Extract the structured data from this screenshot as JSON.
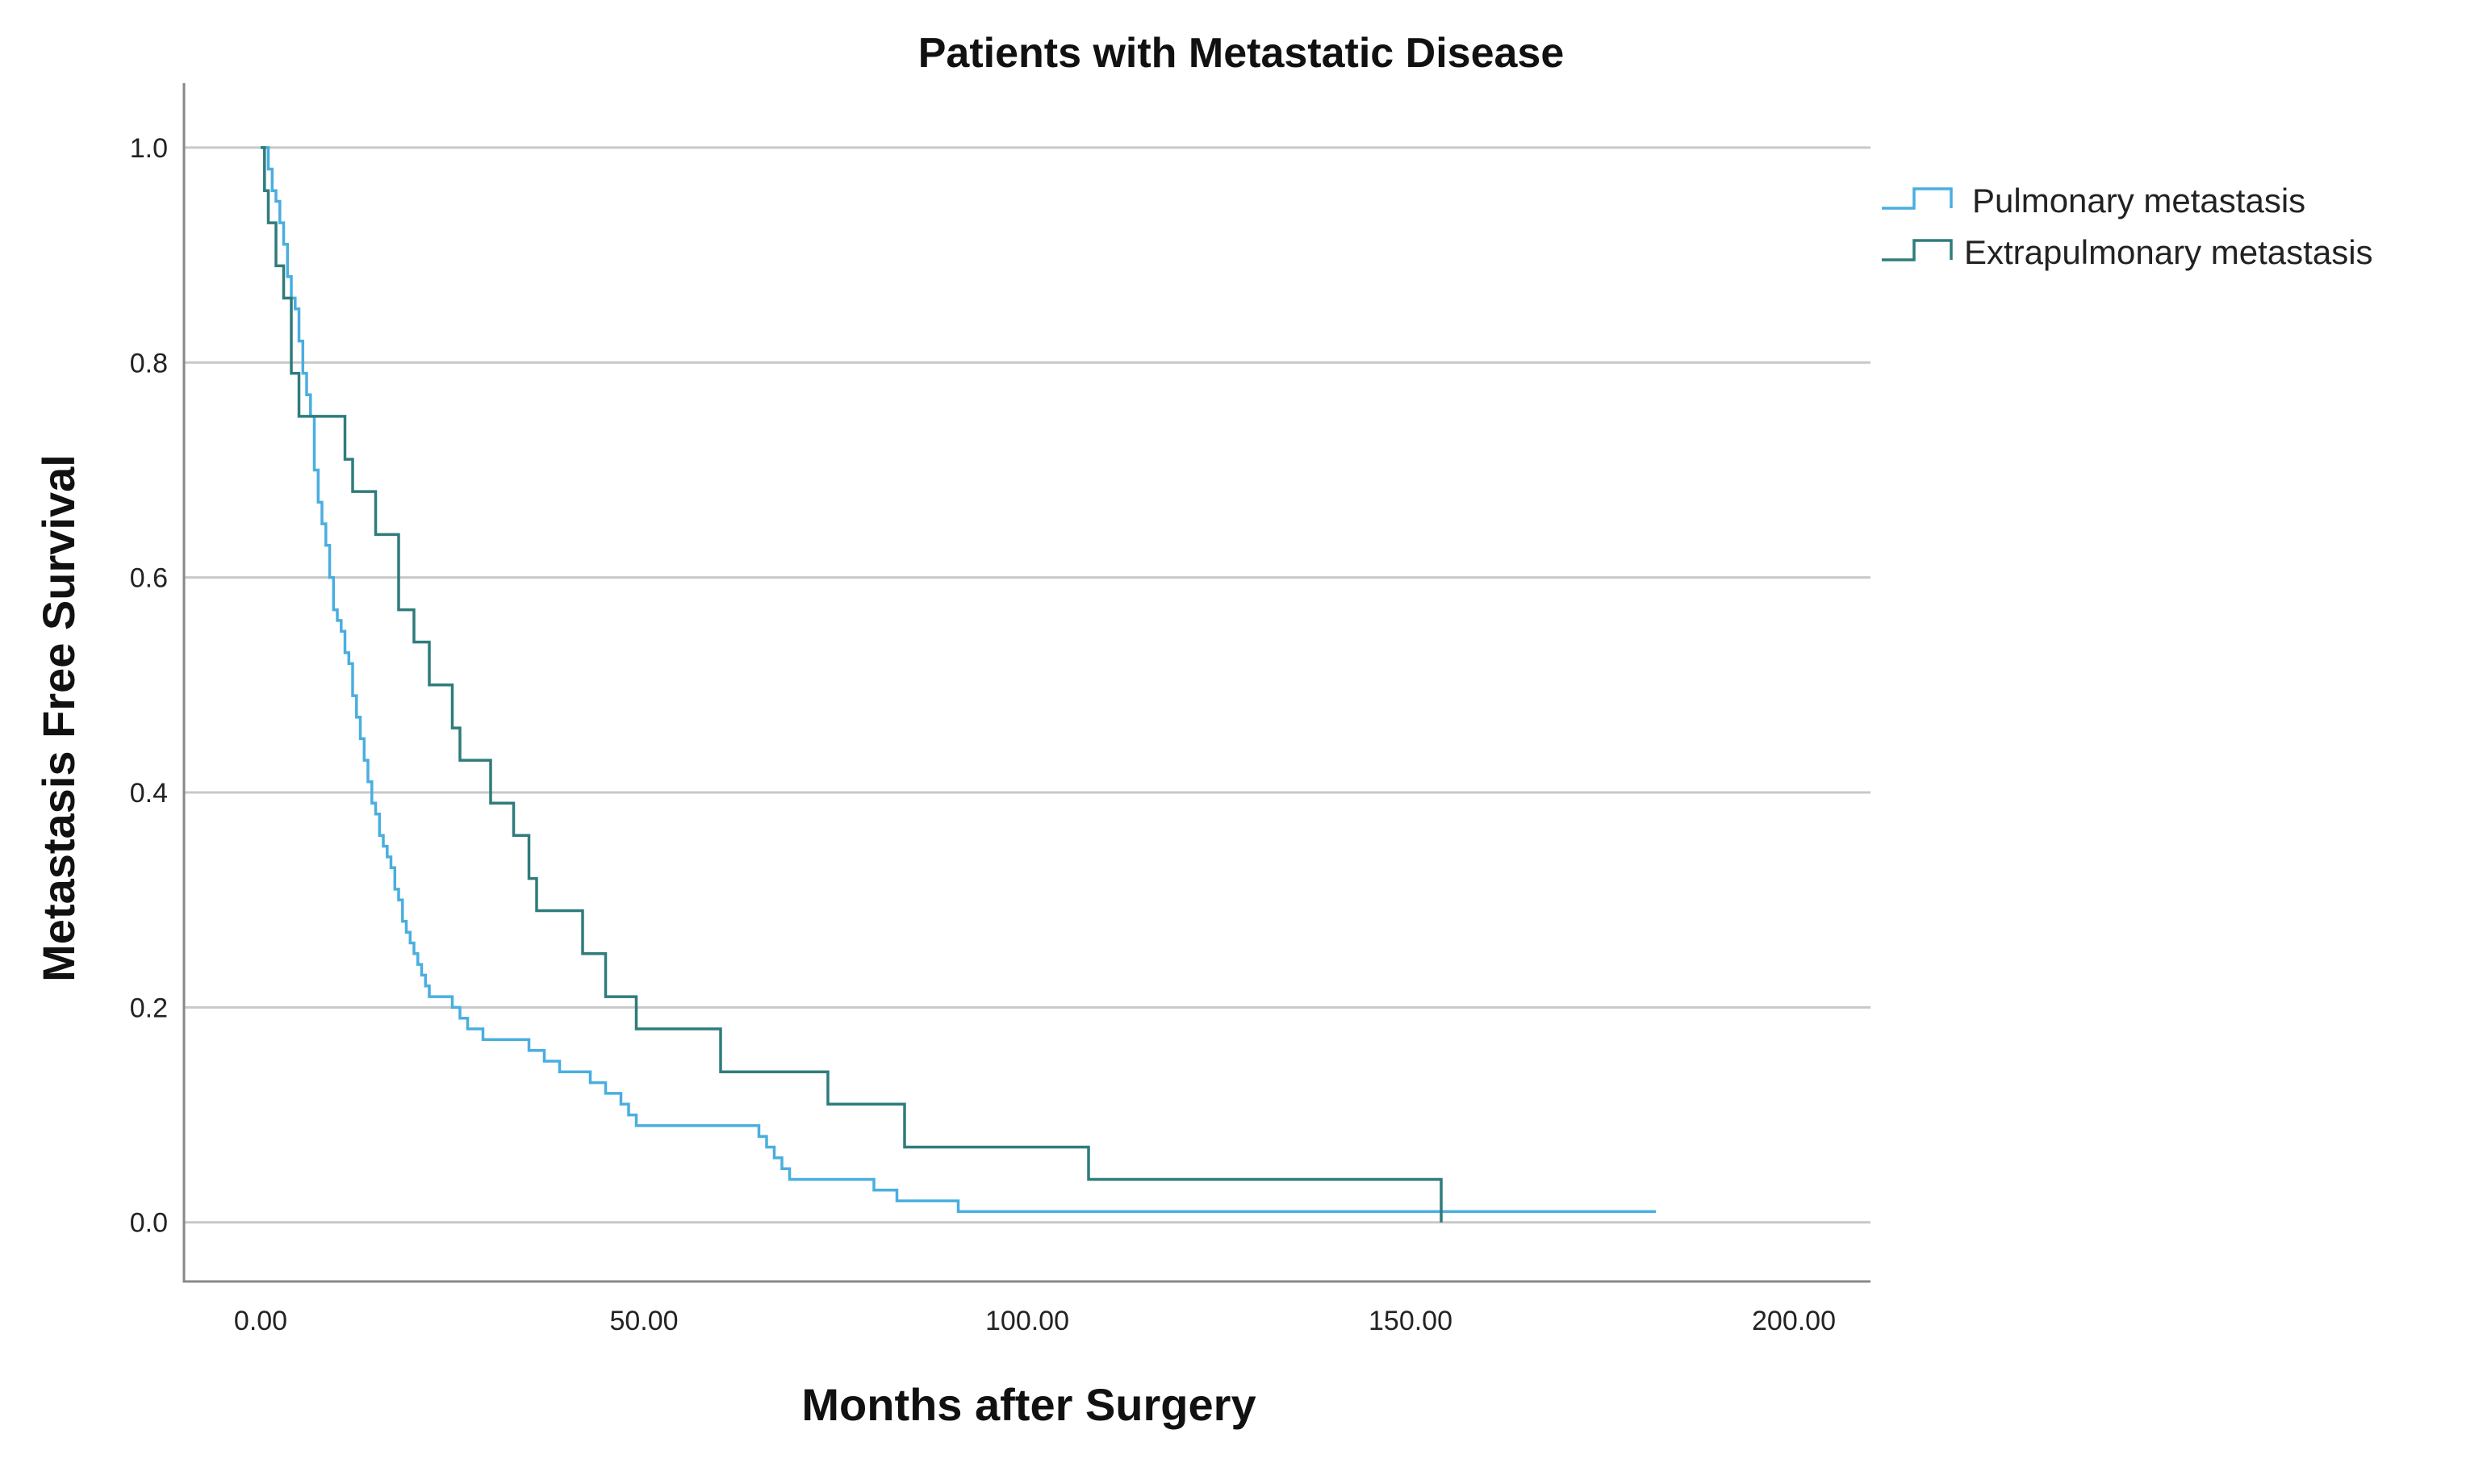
{
  "chart_data": {
    "type": "line",
    "title": "Patients with Metastatic Disease",
    "xlabel": "Months after Surgery",
    "ylabel": "Metastasis Free Survival",
    "xlim": [
      -10,
      210
    ],
    "ylim": [
      -0.055,
      1.06
    ],
    "x_ticks": [
      0,
      50,
      100,
      150,
      200
    ],
    "x_tick_labels": [
      "0.00",
      "50.00",
      "100.00",
      "150.00",
      "200.00"
    ],
    "y_ticks": [
      0,
      0.2,
      0.4,
      0.6,
      0.8,
      1.0
    ],
    "y_tick_labels": [
      "0.0",
      "0.2",
      "0.4",
      "0.6",
      "0.8",
      "1.0"
    ],
    "grid": "horizontal",
    "legend_position": "top-right",
    "series": [
      {
        "name": "Pulmonary metastasis",
        "color": "#4aaee0",
        "step": true,
        "x": [
          0,
          1,
          1.5,
          2,
          2.5,
          3,
          3.5,
          4,
          4.5,
          5,
          5.5,
          6,
          6.5,
          7,
          7.5,
          8,
          8.5,
          9,
          9.5,
          10,
          10.5,
          11,
          11.5,
          12,
          12.5,
          13,
          13.5,
          14,
          14.5,
          15,
          15.5,
          16,
          16.5,
          17,
          17.5,
          18,
          18.5,
          19,
          19.5,
          20,
          20.5,
          21,
          21.5,
          22,
          23,
          25,
          26,
          27,
          29,
          35,
          37,
          39,
          43,
          45,
          47,
          48,
          49,
          51,
          65,
          66,
          67,
          68,
          69,
          70,
          80,
          83,
          85,
          91,
          182
        ],
        "y": [
          1.0,
          0.98,
          0.96,
          0.95,
          0.93,
          0.91,
          0.88,
          0.86,
          0.85,
          0.82,
          0.79,
          0.77,
          0.75,
          0.7,
          0.67,
          0.65,
          0.63,
          0.6,
          0.57,
          0.56,
          0.55,
          0.53,
          0.52,
          0.49,
          0.47,
          0.45,
          0.43,
          0.41,
          0.39,
          0.38,
          0.36,
          0.35,
          0.34,
          0.33,
          0.31,
          0.3,
          0.28,
          0.27,
          0.26,
          0.25,
          0.24,
          0.23,
          0.22,
          0.21,
          0.21,
          0.2,
          0.19,
          0.18,
          0.17,
          0.16,
          0.15,
          0.14,
          0.13,
          0.12,
          0.11,
          0.1,
          0.09,
          0.09,
          0.08,
          0.07,
          0.06,
          0.05,
          0.04,
          0.04,
          0.03,
          0.02,
          0.02,
          0.01,
          0.01
        ]
      },
      {
        "name": "Extrapulmonary metastasis",
        "color": "#2f7c7c",
        "step": true,
        "x": [
          0,
          0.5,
          1,
          2,
          3,
          4,
          5,
          6,
          10,
          11,
          12,
          13,
          15,
          16,
          18,
          20,
          22,
          25,
          26,
          30,
          33,
          35,
          36,
          42,
          45,
          49,
          60,
          74,
          84,
          108,
          154
        ],
        "y": [
          1.0,
          0.96,
          0.93,
          0.89,
          0.86,
          0.79,
          0.75,
          0.75,
          0.75,
          0.71,
          0.68,
          0.68,
          0.64,
          0.64,
          0.57,
          0.54,
          0.5,
          0.46,
          0.43,
          0.39,
          0.36,
          0.32,
          0.29,
          0.25,
          0.21,
          0.18,
          0.14,
          0.11,
          0.07,
          0.04,
          0.0
        ]
      }
    ]
  }
}
